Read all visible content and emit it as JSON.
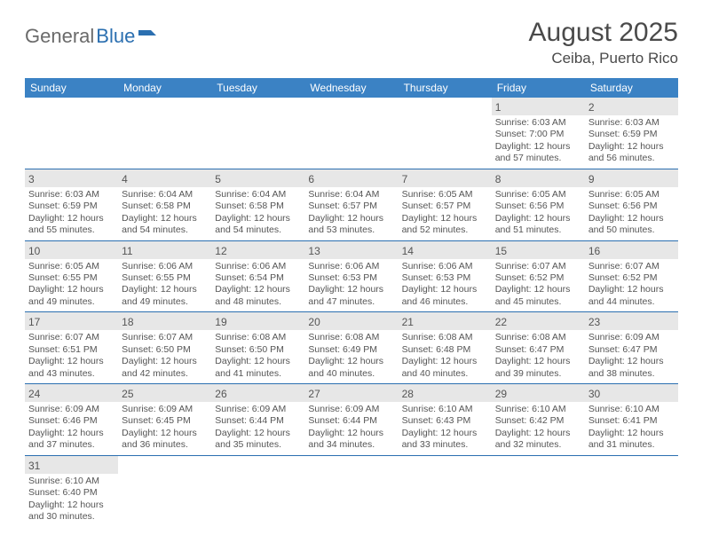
{
  "logo": {
    "text1": "General",
    "text2": "Blue"
  },
  "title": {
    "monthYear": "August 2025",
    "location": "Ceiba, Puerto Rico"
  },
  "colors": {
    "headerBg": "#3b82c4",
    "headerText": "#ffffff",
    "dayNumBg": "#e7e7e7",
    "borderColor": "#2b6fb0",
    "textColor": "#555555",
    "logoGray": "#6a6a6a",
    "logoBlue": "#2b6fb0"
  },
  "dayNames": [
    "Sunday",
    "Monday",
    "Tuesday",
    "Wednesday",
    "Thursday",
    "Friday",
    "Saturday"
  ],
  "weeks": [
    [
      null,
      null,
      null,
      null,
      null,
      {
        "n": "1",
        "sr": "Sunrise: 6:03 AM",
        "ss": "Sunset: 7:00 PM",
        "dl1": "Daylight: 12 hours",
        "dl2": "and 57 minutes."
      },
      {
        "n": "2",
        "sr": "Sunrise: 6:03 AM",
        "ss": "Sunset: 6:59 PM",
        "dl1": "Daylight: 12 hours",
        "dl2": "and 56 minutes."
      }
    ],
    [
      {
        "n": "3",
        "sr": "Sunrise: 6:03 AM",
        "ss": "Sunset: 6:59 PM",
        "dl1": "Daylight: 12 hours",
        "dl2": "and 55 minutes."
      },
      {
        "n": "4",
        "sr": "Sunrise: 6:04 AM",
        "ss": "Sunset: 6:58 PM",
        "dl1": "Daylight: 12 hours",
        "dl2": "and 54 minutes."
      },
      {
        "n": "5",
        "sr": "Sunrise: 6:04 AM",
        "ss": "Sunset: 6:58 PM",
        "dl1": "Daylight: 12 hours",
        "dl2": "and 54 minutes."
      },
      {
        "n": "6",
        "sr": "Sunrise: 6:04 AM",
        "ss": "Sunset: 6:57 PM",
        "dl1": "Daylight: 12 hours",
        "dl2": "and 53 minutes."
      },
      {
        "n": "7",
        "sr": "Sunrise: 6:05 AM",
        "ss": "Sunset: 6:57 PM",
        "dl1": "Daylight: 12 hours",
        "dl2": "and 52 minutes."
      },
      {
        "n": "8",
        "sr": "Sunrise: 6:05 AM",
        "ss": "Sunset: 6:56 PM",
        "dl1": "Daylight: 12 hours",
        "dl2": "and 51 minutes."
      },
      {
        "n": "9",
        "sr": "Sunrise: 6:05 AM",
        "ss": "Sunset: 6:56 PM",
        "dl1": "Daylight: 12 hours",
        "dl2": "and 50 minutes."
      }
    ],
    [
      {
        "n": "10",
        "sr": "Sunrise: 6:05 AM",
        "ss": "Sunset: 6:55 PM",
        "dl1": "Daylight: 12 hours",
        "dl2": "and 49 minutes."
      },
      {
        "n": "11",
        "sr": "Sunrise: 6:06 AM",
        "ss": "Sunset: 6:55 PM",
        "dl1": "Daylight: 12 hours",
        "dl2": "and 49 minutes."
      },
      {
        "n": "12",
        "sr": "Sunrise: 6:06 AM",
        "ss": "Sunset: 6:54 PM",
        "dl1": "Daylight: 12 hours",
        "dl2": "and 48 minutes."
      },
      {
        "n": "13",
        "sr": "Sunrise: 6:06 AM",
        "ss": "Sunset: 6:53 PM",
        "dl1": "Daylight: 12 hours",
        "dl2": "and 47 minutes."
      },
      {
        "n": "14",
        "sr": "Sunrise: 6:06 AM",
        "ss": "Sunset: 6:53 PM",
        "dl1": "Daylight: 12 hours",
        "dl2": "and 46 minutes."
      },
      {
        "n": "15",
        "sr": "Sunrise: 6:07 AM",
        "ss": "Sunset: 6:52 PM",
        "dl1": "Daylight: 12 hours",
        "dl2": "and 45 minutes."
      },
      {
        "n": "16",
        "sr": "Sunrise: 6:07 AM",
        "ss": "Sunset: 6:52 PM",
        "dl1": "Daylight: 12 hours",
        "dl2": "and 44 minutes."
      }
    ],
    [
      {
        "n": "17",
        "sr": "Sunrise: 6:07 AM",
        "ss": "Sunset: 6:51 PM",
        "dl1": "Daylight: 12 hours",
        "dl2": "and 43 minutes."
      },
      {
        "n": "18",
        "sr": "Sunrise: 6:07 AM",
        "ss": "Sunset: 6:50 PM",
        "dl1": "Daylight: 12 hours",
        "dl2": "and 42 minutes."
      },
      {
        "n": "19",
        "sr": "Sunrise: 6:08 AM",
        "ss": "Sunset: 6:50 PM",
        "dl1": "Daylight: 12 hours",
        "dl2": "and 41 minutes."
      },
      {
        "n": "20",
        "sr": "Sunrise: 6:08 AM",
        "ss": "Sunset: 6:49 PM",
        "dl1": "Daylight: 12 hours",
        "dl2": "and 40 minutes."
      },
      {
        "n": "21",
        "sr": "Sunrise: 6:08 AM",
        "ss": "Sunset: 6:48 PM",
        "dl1": "Daylight: 12 hours",
        "dl2": "and 40 minutes."
      },
      {
        "n": "22",
        "sr": "Sunrise: 6:08 AM",
        "ss": "Sunset: 6:47 PM",
        "dl1": "Daylight: 12 hours",
        "dl2": "and 39 minutes."
      },
      {
        "n": "23",
        "sr": "Sunrise: 6:09 AM",
        "ss": "Sunset: 6:47 PM",
        "dl1": "Daylight: 12 hours",
        "dl2": "and 38 minutes."
      }
    ],
    [
      {
        "n": "24",
        "sr": "Sunrise: 6:09 AM",
        "ss": "Sunset: 6:46 PM",
        "dl1": "Daylight: 12 hours",
        "dl2": "and 37 minutes."
      },
      {
        "n": "25",
        "sr": "Sunrise: 6:09 AM",
        "ss": "Sunset: 6:45 PM",
        "dl1": "Daylight: 12 hours",
        "dl2": "and 36 minutes."
      },
      {
        "n": "26",
        "sr": "Sunrise: 6:09 AM",
        "ss": "Sunset: 6:44 PM",
        "dl1": "Daylight: 12 hours",
        "dl2": "and 35 minutes."
      },
      {
        "n": "27",
        "sr": "Sunrise: 6:09 AM",
        "ss": "Sunset: 6:44 PM",
        "dl1": "Daylight: 12 hours",
        "dl2": "and 34 minutes."
      },
      {
        "n": "28",
        "sr": "Sunrise: 6:10 AM",
        "ss": "Sunset: 6:43 PM",
        "dl1": "Daylight: 12 hours",
        "dl2": "and 33 minutes."
      },
      {
        "n": "29",
        "sr": "Sunrise: 6:10 AM",
        "ss": "Sunset: 6:42 PM",
        "dl1": "Daylight: 12 hours",
        "dl2": "and 32 minutes."
      },
      {
        "n": "30",
        "sr": "Sunrise: 6:10 AM",
        "ss": "Sunset: 6:41 PM",
        "dl1": "Daylight: 12 hours",
        "dl2": "and 31 minutes."
      }
    ],
    [
      {
        "n": "31",
        "sr": "Sunrise: 6:10 AM",
        "ss": "Sunset: 6:40 PM",
        "dl1": "Daylight: 12 hours",
        "dl2": "and 30 minutes."
      },
      null,
      null,
      null,
      null,
      null,
      null
    ]
  ]
}
